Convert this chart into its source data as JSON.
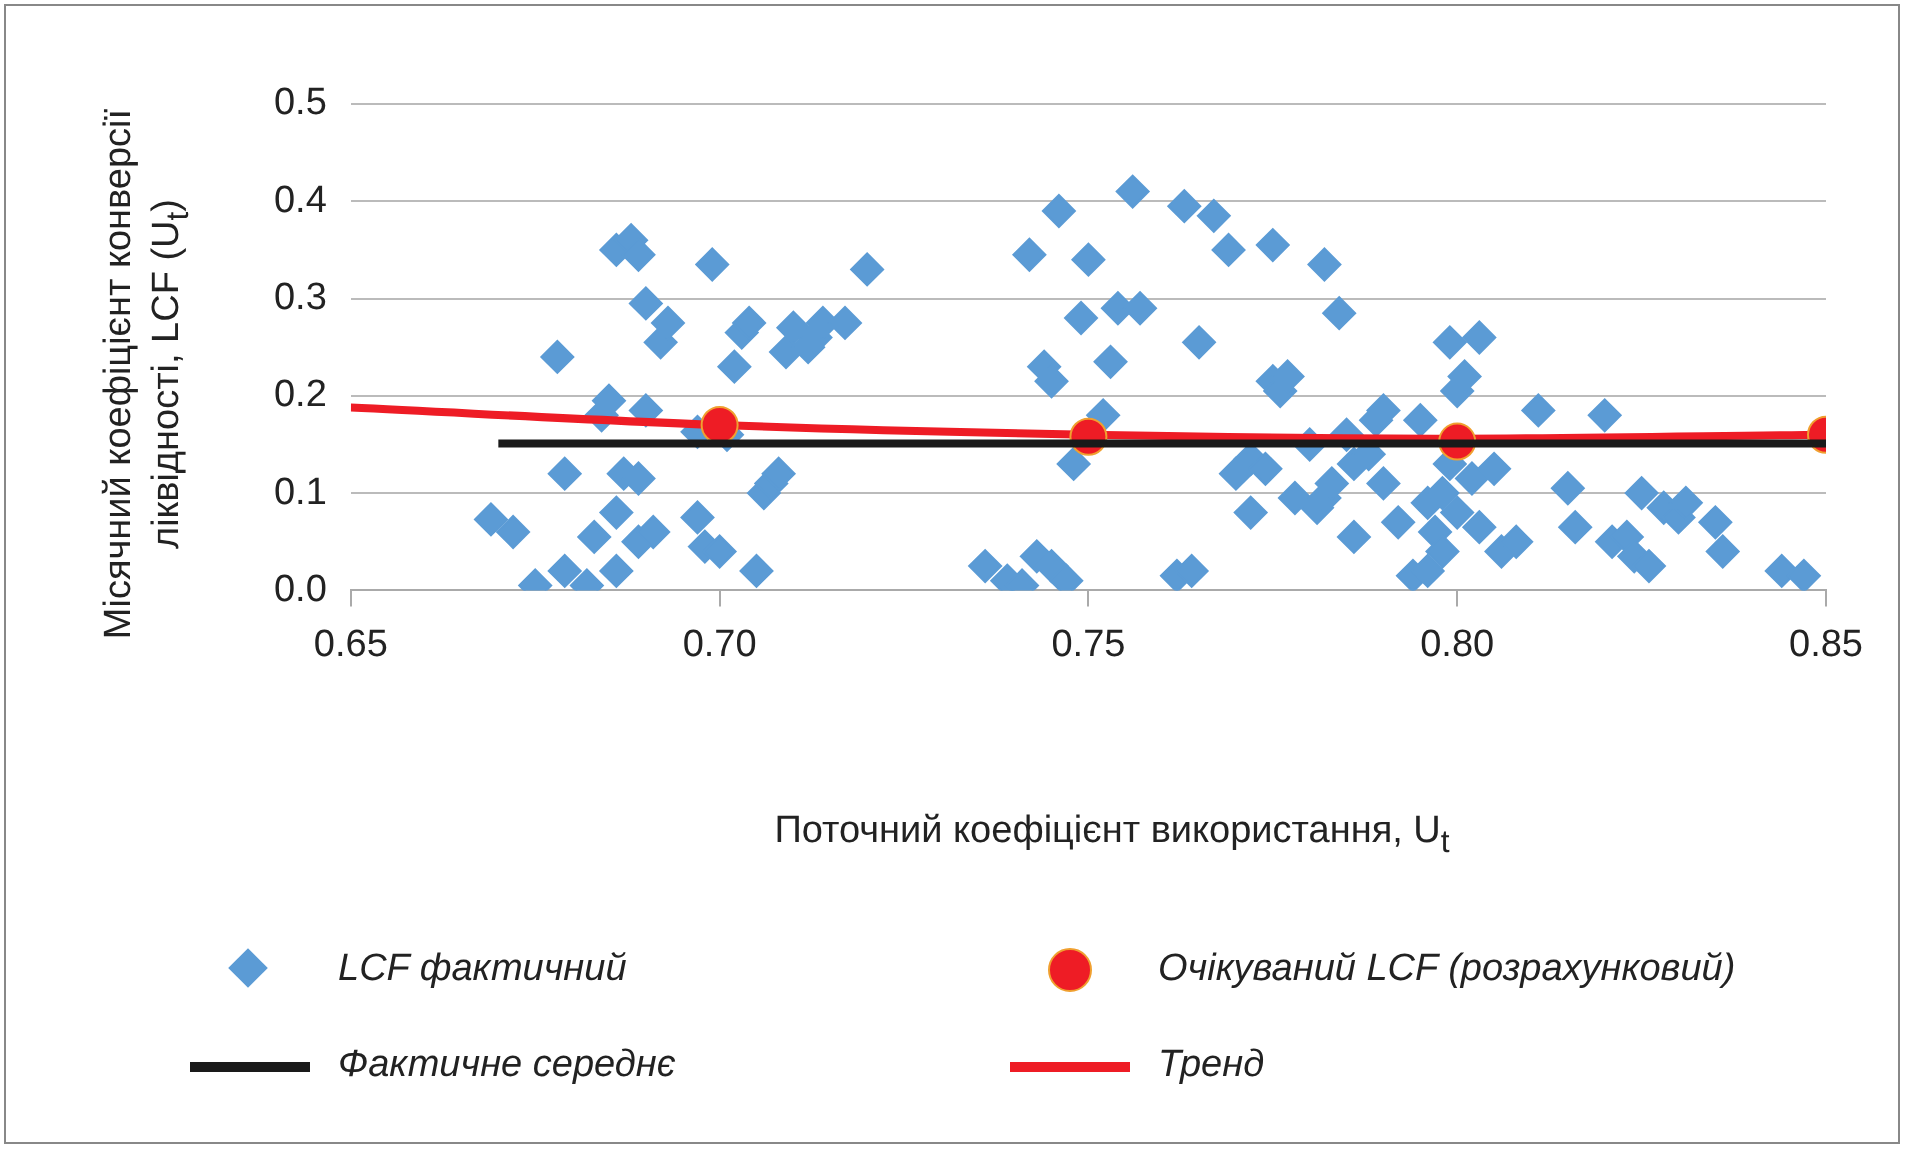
{
  "chart_data": {
    "type": "scatter",
    "xlabel": "Поточний коефіцієнт використання, U$_{t}$",
    "ylabel": "Місячний коефіцієнт конверсії ліквідності, LCF (U$_{t}$)",
    "xlim": [
      0.65,
      0.85
    ],
    "xticks": [
      0.65,
      {
        "value": 0.7,
        "label": "0.70"
      },
      0.75,
      {
        "value": 0.8,
        "label": "0.80"
      },
      0.85
    ],
    "ylim": [
      0,
      0.5
    ],
    "yticks": [
      {
        "value": 0,
        "label": "0.0"
      },
      0.1,
      0.2,
      0.3,
      0.4,
      0.5
    ],
    "grid": "y",
    "legend": "bottom",
    "series": [
      {
        "name": "LCF фактичний",
        "marker": "diamond",
        "color": "#5b9bd5",
        "x": [
          0.669,
          0.672,
          0.675,
          0.679,
          0.678,
          0.679,
          0.682,
          0.683,
          0.684,
          0.685,
          0.686,
          0.686,
          0.687,
          0.686,
          0.688,
          0.689,
          0.689,
          0.689,
          0.69,
          0.69,
          0.691,
          0.692,
          0.693,
          0.697,
          0.698,
          0.697,
          0.699,
          0.7,
          0.701,
          0.702,
          0.703,
          0.704,
          0.705,
          0.706,
          0.707,
          0.708,
          0.709,
          0.71,
          0.712,
          0.713,
          0.714,
          0.717,
          0.72,
          0.736,
          0.739,
          0.741,
          0.742,
          0.743,
          0.744,
          0.745,
          0.745,
          0.746,
          0.747,
          0.748,
          0.749,
          0.75,
          0.752,
          0.753,
          0.754,
          0.756,
          0.757,
          0.762,
          0.763,
          0.764,
          0.765,
          0.767,
          0.769,
          0.77,
          0.772,
          0.772,
          0.774,
          0.775,
          0.775,
          0.776,
          0.777,
          0.778,
          0.78,
          0.781,
          0.782,
          0.782,
          0.783,
          0.784,
          0.785,
          0.786,
          0.786,
          0.788,
          0.789,
          0.79,
          0.79,
          0.792,
          0.794,
          0.795,
          0.796,
          0.796,
          0.797,
          0.798,
          0.798,
          0.799,
          0.799,
          0.8,
          0.8,
          0.801,
          0.802,
          0.803,
          0.803,
          0.805,
          0.806,
          0.808,
          0.811,
          0.815,
          0.816,
          0.82,
          0.821,
          0.823,
          0.824,
          0.825,
          0.826,
          0.828,
          0.83,
          0.831,
          0.835,
          0.836,
          0.844,
          0.847
        ],
        "values": [
          0.073,
          0.06,
          0.005,
          0.02,
          0.24,
          0.12,
          0.005,
          0.055,
          0.18,
          0.195,
          0.02,
          0.08,
          0.12,
          0.35,
          0.36,
          0.345,
          0.115,
          0.05,
          0.295,
          0.185,
          0.06,
          0.255,
          0.275,
          0.075,
          0.045,
          0.163,
          0.335,
          0.04,
          0.16,
          0.23,
          0.265,
          0.275,
          0.02,
          0.1,
          0.11,
          0.12,
          0.245,
          0.27,
          0.25,
          0.26,
          0.275,
          0.275,
          0.33,
          0.025,
          0.01,
          0.005,
          0.345,
          0.035,
          0.23,
          0.025,
          0.215,
          0.39,
          0.01,
          0.13,
          0.28,
          0.34,
          0.18,
          0.235,
          0.29,
          0.41,
          0.29,
          0.015,
          0.395,
          0.02,
          0.255,
          0.385,
          0.35,
          0.12,
          0.08,
          0.135,
          0.125,
          0.355,
          0.215,
          0.205,
          0.22,
          0.095,
          0.15,
          0.085,
          0.095,
          0.335,
          0.11,
          0.285,
          0.16,
          0.055,
          0.13,
          0.14,
          0.175,
          0.185,
          0.11,
          0.07,
          0.015,
          0.175,
          0.02,
          0.09,
          0.06,
          0.04,
          0.1,
          0.13,
          0.255,
          0.205,
          0.08,
          0.22,
          0.115,
          0.26,
          0.065,
          0.125,
          0.04,
          0.05,
          0.185,
          0.105,
          0.065,
          0.18,
          0.05,
          0.055,
          0.035,
          0.1,
          0.025,
          0.085,
          0.075,
          0.09,
          0.07,
          0.04,
          0.02,
          0.015
        ]
      },
      {
        "name": "Очікуваний LCF (розрахунковий)",
        "marker": "circle",
        "color": "#ee1c25",
        "x": [
          0.7,
          0.75,
          0.8,
          0.85
        ],
        "values": [
          0.17,
          0.158,
          0.153,
          0.16
        ]
      },
      {
        "name": "Фактичне середнє",
        "type": "line",
        "marker": "none",
        "color": "#1a1a1a",
        "x": [
          0.67,
          0.85
        ],
        "values": [
          0.151,
          0.151
        ]
      },
      {
        "name": "Тренд",
        "type": "line",
        "marker": "none",
        "color": "#ee1c25",
        "x": [
          0.65,
          0.7,
          0.75,
          0.8,
          0.85
        ],
        "values": [
          0.188,
          0.17,
          0.16,
          0.156,
          0.16
        ]
      }
    ]
  }
}
